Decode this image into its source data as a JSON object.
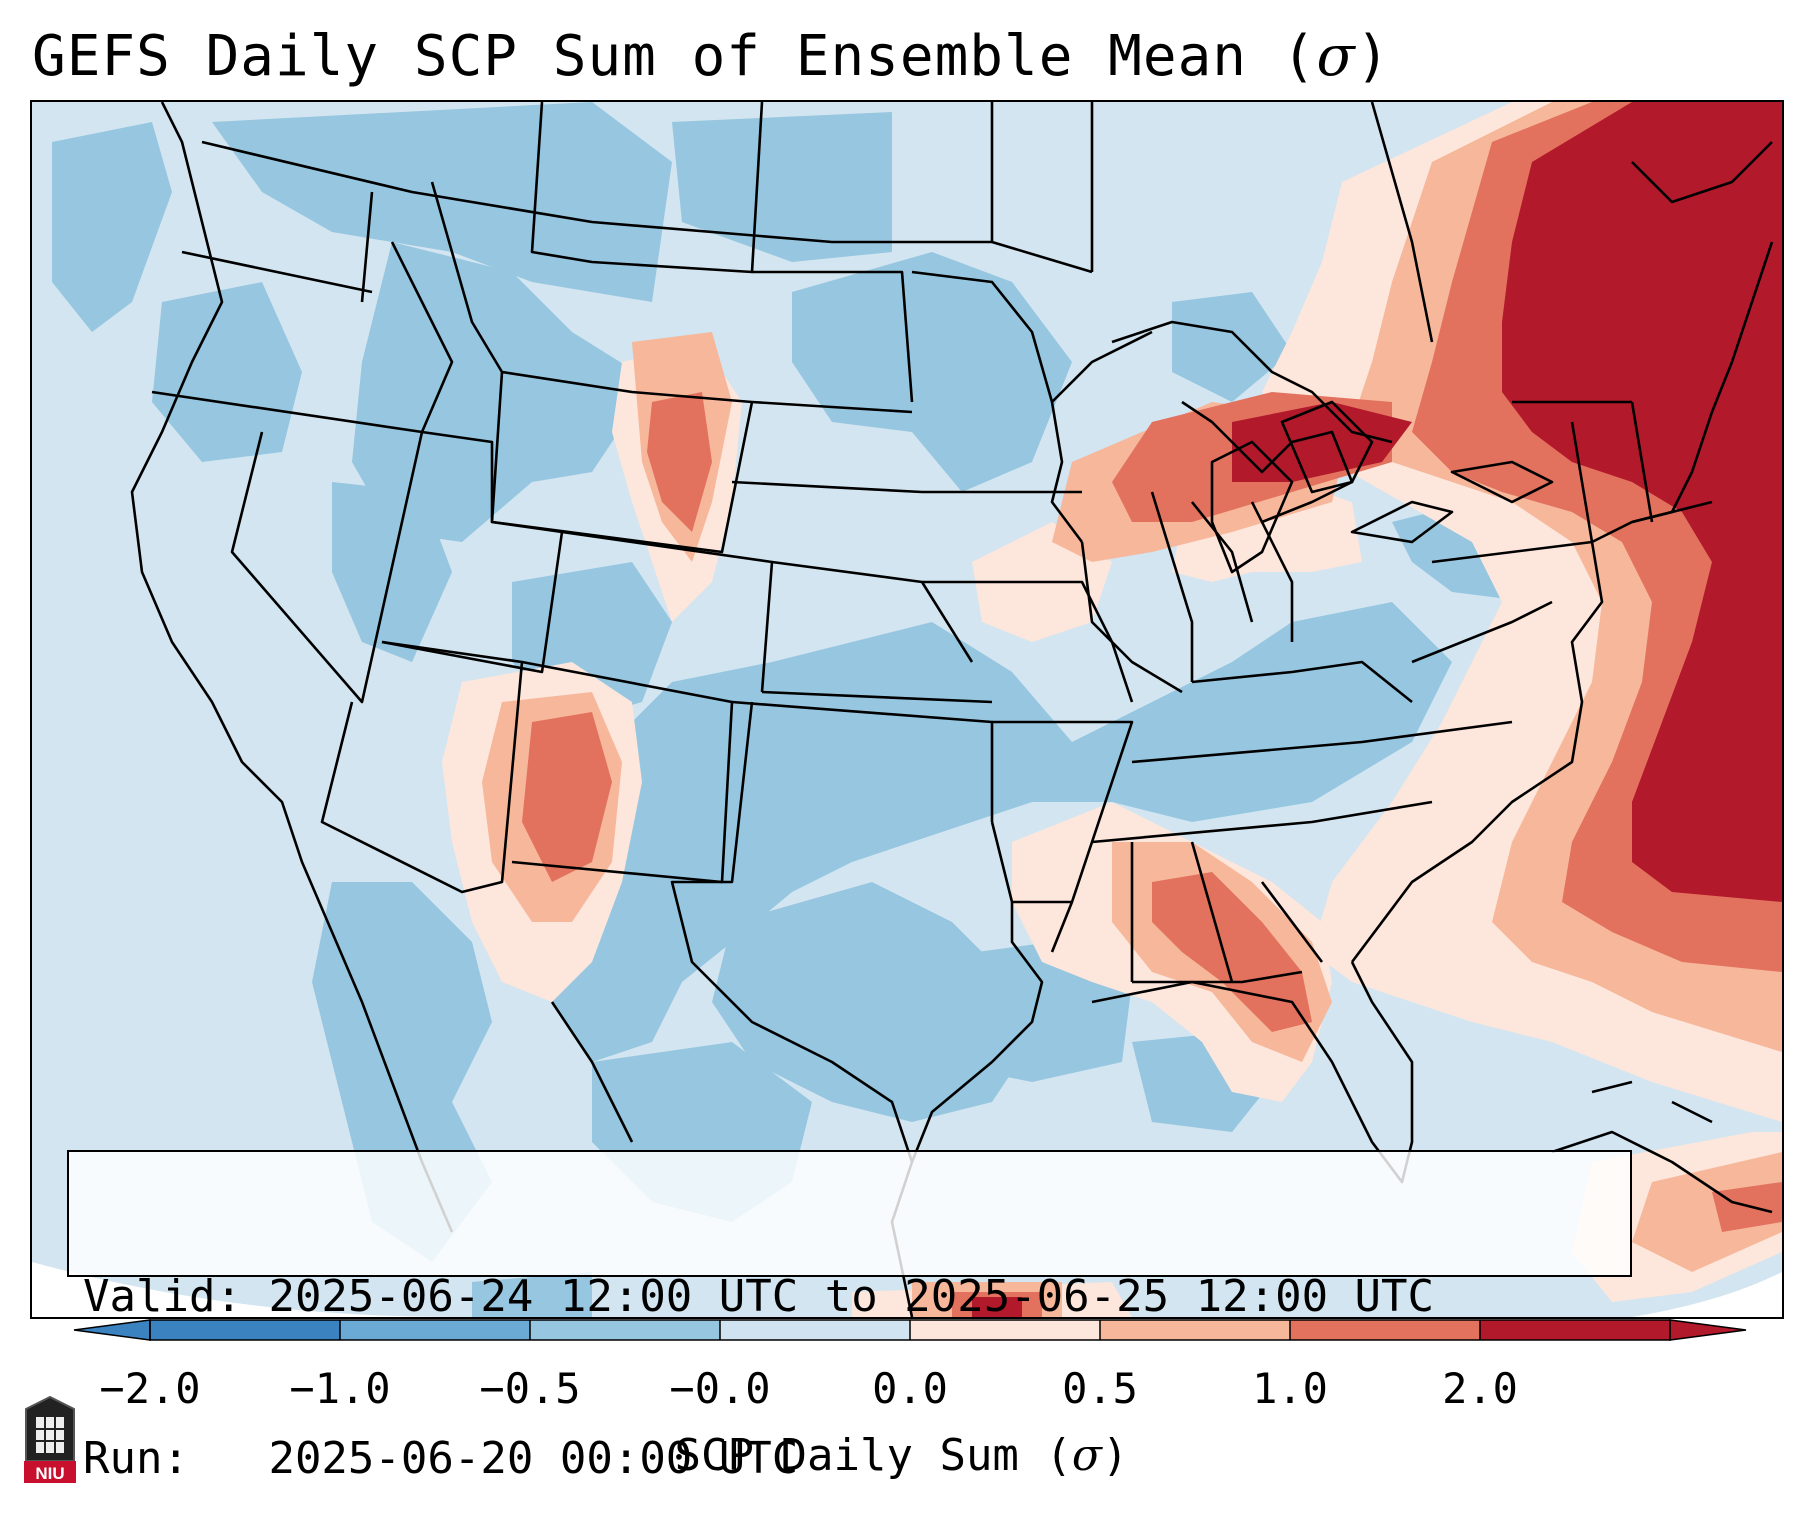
{
  "title": {
    "text": "GEFS Daily SCP Sum of Ensemble Mean (",
    "symbol": "σ",
    "close": ")"
  },
  "info": {
    "valid_label": "Valid:",
    "valid_value": "2025-06-24 12:00 UTC to 2025-06-25 12:00 UTC",
    "run_label": "Run:",
    "run_value": "2025-06-20 00:00 UTC"
  },
  "colorbar": {
    "ticks": [
      "−2.0",
      "−1.0",
      "−0.5",
      "−0.0",
      "0.0",
      "0.5",
      "1.0",
      "2.0"
    ],
    "colors": [
      "#3a83c0",
      "#6aaad5",
      "#96c6e0",
      "#cfe4f0",
      "#fde6dc",
      "#f7b79b",
      "#e2715e",
      "#b2192b"
    ],
    "label_text": "SCP Daily Sum (",
    "label_symbol": "σ",
    "label_close": ")"
  },
  "map": {
    "background_color": "#d2e5f0",
    "shading": "Low-level ensemble-mean SCP anomaly: blue over western and central US, positive anomalies over New Mexico, Wyoming, Great Lakes, Southeast US and strongly positive over the Northeast and western Atlantic"
  },
  "logo": {
    "text": "NIU",
    "color": "#c8102e"
  }
}
